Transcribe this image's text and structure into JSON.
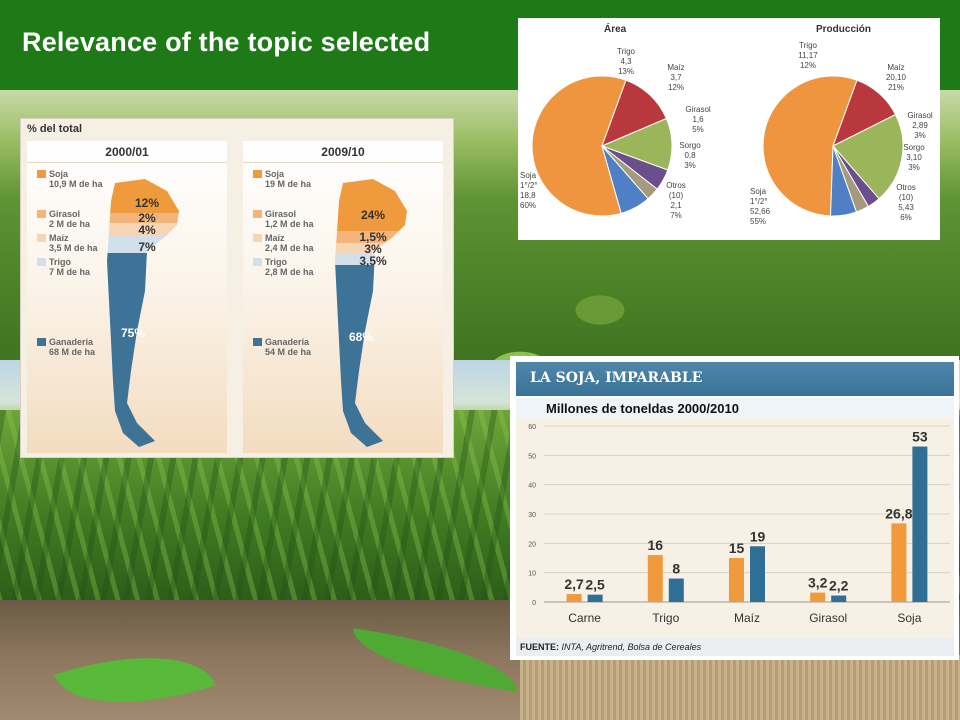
{
  "slide": {
    "title": "Relevance of the topic selected"
  },
  "map_figure": {
    "header": "% del total",
    "panels": [
      {
        "year": "2000/01",
        "legend": [
          {
            "name": "Soja",
            "value": "10,9 M de ha",
            "color": "#ef9a3c"
          },
          {
            "name": "Girasol",
            "value": "2 M de ha",
            "color": "#f2b47a"
          },
          {
            "name": "Maíz",
            "value": "3,5 M de ha",
            "color": "#f6d5b4"
          },
          {
            "name": "Trigo",
            "value": "7 M de ha",
            "color": "#d2e0ec"
          },
          {
            "name": "Ganadería",
            "value": "68 M de ha",
            "color": "#3c7397"
          }
        ],
        "labels": [
          "12%",
          "2%",
          "4%",
          "7%",
          "75%"
        ]
      },
      {
        "year": "2009/10",
        "legend": [
          {
            "name": "Soja",
            "value": "19 M de ha",
            "color": "#ef9a3c"
          },
          {
            "name": "Girasol",
            "value": "1,2 M de ha",
            "color": "#f2b47a"
          },
          {
            "name": "Maíz",
            "value": "2,4 M de ha",
            "color": "#f6d5b4"
          },
          {
            "name": "Trigo",
            "value": "2,8 M de ha",
            "color": "#d2e0ec"
          },
          {
            "name": "Ganadería",
            "value": "54 M de ha",
            "color": "#3c7397"
          }
        ],
        "labels": [
          "24%",
          "1,5%",
          "3%",
          "3,5%",
          "68%"
        ]
      }
    ]
  },
  "chart_data": [
    {
      "type": "pie",
      "title": "Área",
      "slices": [
        {
          "name": "Soja",
          "lines": [
            "Soja",
            "1°/2°",
            "18,8",
            "60%"
          ],
          "value": 60,
          "color": "#f0953f"
        },
        {
          "name": "Trigo",
          "lines": [
            "Trigo",
            "4,3",
            "13%"
          ],
          "value": 13,
          "color": "#b8383e"
        },
        {
          "name": "Maíz",
          "lines": [
            "Maíz",
            "3,7",
            "12%"
          ],
          "value": 12,
          "color": "#9ab55a"
        },
        {
          "name": "Girasol",
          "lines": [
            "Girasol",
            "1,6",
            "5%"
          ],
          "value": 5,
          "color": "#6a4f8c"
        },
        {
          "name": "Sorgo",
          "lines": [
            "Sorgo",
            "0,8",
            "3%"
          ],
          "value": 3,
          "color": "#a59a7c"
        },
        {
          "name": "Otros",
          "lines": [
            "Otros",
            "(10)",
            "2,1",
            "7%"
          ],
          "value": 7,
          "color": "#4f7fc4"
        }
      ]
    },
    {
      "type": "pie",
      "title": "Producción",
      "slices": [
        {
          "name": "Soja",
          "lines": [
            "Soja",
            "1°/2°",
            "52,66",
            "55%"
          ],
          "value": 55,
          "color": "#f0953f"
        },
        {
          "name": "Trigo",
          "lines": [
            "Trigo",
            "11,17",
            "12%"
          ],
          "value": 12,
          "color": "#b8383e"
        },
        {
          "name": "Maíz",
          "lines": [
            "Maíz",
            "20,10",
            "21%"
          ],
          "value": 21,
          "color": "#9ab55a"
        },
        {
          "name": "Girasol",
          "lines": [
            "Girasol",
            "2,89",
            "3%"
          ],
          "value": 3,
          "color": "#6a4f8c"
        },
        {
          "name": "Sorgo",
          "lines": [
            "Sorgo",
            "3,10",
            "3%"
          ],
          "value": 3,
          "color": "#a59a7c"
        },
        {
          "name": "Otros",
          "lines": [
            "Otros",
            "(10)",
            "5,43",
            "6%"
          ],
          "value": 6,
          "color": "#4f7fc4"
        }
      ]
    },
    {
      "type": "bar",
      "header": "LA SOJA, IMPARABLE",
      "title": "Millones de toneldas 2000/2010",
      "categories": [
        "Carne",
        "Trigo",
        "Maíz",
        "Girasol",
        "Soja"
      ],
      "series": [
        {
          "name": "2000",
          "values": [
            2.7,
            16,
            15,
            3.2,
            26.8
          ],
          "labels": [
            "2,7",
            "16",
            "15",
            "3,2",
            "26,8"
          ],
          "color": "#ef9a3c"
        },
        {
          "name": "2010",
          "values": [
            2.5,
            8,
            19,
            2.2,
            53
          ],
          "labels": [
            "2,5",
            "8",
            "19",
            "2,2",
            "53"
          ],
          "color": "#2f6f96"
        }
      ],
      "yticks": [
        0,
        10,
        20,
        30,
        40,
        50,
        60
      ],
      "ylim": [
        0,
        60
      ],
      "grid": true,
      "source_label": "FUENTE:",
      "source": "INTA, Agritrend, Bolsa de Cereales"
    }
  ]
}
